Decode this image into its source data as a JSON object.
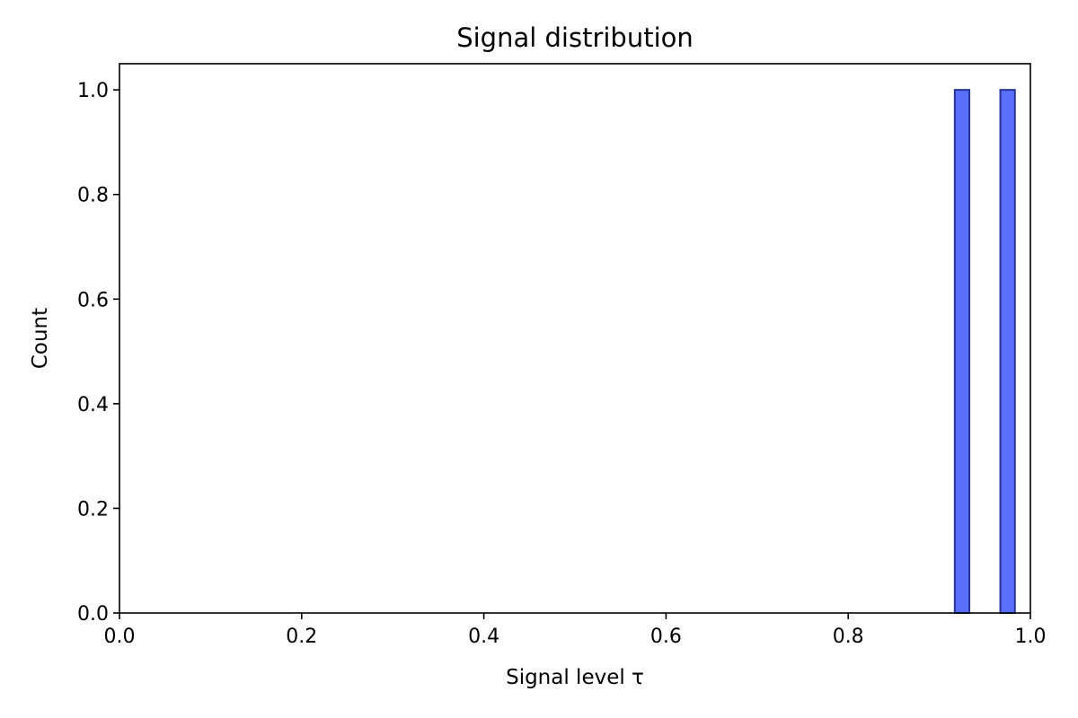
{
  "chart_data": {
    "type": "bar",
    "title": "Signal distribution",
    "xlabel": "Signal level τ",
    "ylabel": "Count",
    "xlim": [
      0.0,
      1.0
    ],
    "ylim": [
      0.0,
      1.05
    ],
    "xticks": [
      "0.0",
      "0.2",
      "0.4",
      "0.6",
      "0.8",
      "1.0"
    ],
    "yticks": [
      "0.0",
      "0.2",
      "0.4",
      "0.6",
      "0.8",
      "1.0"
    ],
    "grid": false,
    "bins": [
      {
        "x0": 0.917,
        "x1": 0.933,
        "count": 1
      },
      {
        "x0": 0.967,
        "x1": 0.983,
        "count": 1
      }
    ],
    "colors": {
      "bar_fill": "#5a6ffa",
      "bar_edge": "#26349a"
    }
  }
}
